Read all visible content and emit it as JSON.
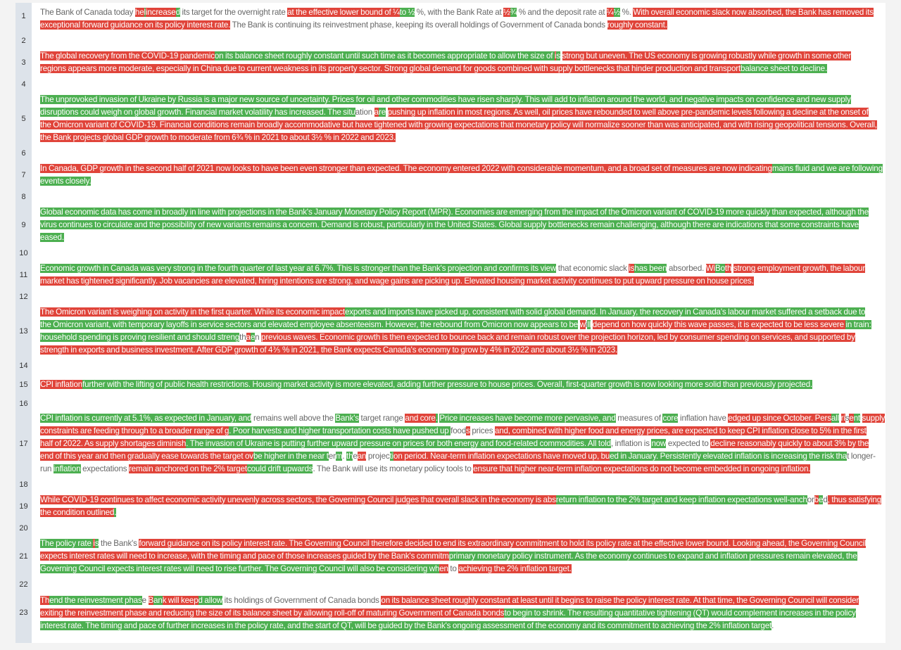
{
  "colors": {
    "deleted": "#e0443a",
    "inserted": "#4caf50",
    "unchanged": "#666666",
    "gutter": "#dde3ea"
  },
  "line_numbers": [
    "1",
    "2",
    "3",
    "4",
    "5",
    "6",
    "7",
    "8",
    "9",
    "10",
    "11",
    "12",
    "13",
    "14",
    "15",
    "16",
    "17",
    "18",
    "19",
    "20",
    "21",
    "22",
    "23"
  ],
  "paragraphs": [
    {
      "line": "1",
      "visual_lines": [
        [
          [
            "e",
            "The Bank of Canada today "
          ],
          [
            "d",
            "he"
          ],
          [
            "i",
            "l"
          ],
          [
            "d",
            "increase"
          ],
          [
            "i",
            "d"
          ],
          [
            "e",
            " its target for the overnight rate "
          ],
          [
            "d",
            "at the effective lower bound of ¼"
          ],
          [
            "i",
            "to ½"
          ],
          [
            "e",
            " %, with the Bank Rate at "
          ],
          [
            "d",
            "½"
          ],
          [
            "i",
            "¾"
          ],
          [
            "e",
            " % and the deposit rate at "
          ],
          [
            "d",
            "¼"
          ],
          [
            "i",
            "½"
          ],
          [
            "e",
            " %. "
          ],
          [
            "d",
            "With overall economic slack now absorbed, the Bank has removed its"
          ]
        ],
        [
          [
            "d",
            "exceptional forward guidance on its policy interest rate."
          ],
          [
            "e",
            " The Bank is continuing its reinvestment phase, keeping its overall holdings of Government of Canada bonds "
          ],
          [
            "d",
            "roughly constant."
          ]
        ]
      ]
    },
    {
      "line": "3",
      "visual_lines": [
        [
          [
            "d",
            "The global recovery from the COVID-19 pandemic"
          ],
          [
            "i",
            "on its balance sheet roughly constant until such time as it becomes appropriate to allow the size of "
          ],
          [
            "d",
            "i"
          ],
          [
            "i",
            "s"
          ],
          [
            "e",
            " "
          ],
          [
            "d",
            "strong but uneven. The US economy is growing robustly while growth in some other"
          ]
        ],
        [
          [
            "d",
            "regions appears more moderate, especially in China due to current weakness in its property sector. Strong global demand for goods combined with supply bottlenecks that hinder production and transport"
          ],
          [
            "i",
            "balance sheet to decline."
          ]
        ]
      ]
    },
    {
      "line": "5",
      "visual_lines": [
        [
          [
            "i",
            "The unprovoked invasion of Ukraine by Russia is a major new source of uncertainty. Prices for oil and other commodities have risen sharply. This will add to inflation around the world, and negative impacts on confidence and new supply"
          ]
        ],
        [
          [
            "i",
            "disruptions could weigh on global growth. Financial market volatility has increased. The situ"
          ],
          [
            "e",
            "ation "
          ],
          [
            "d",
            "a"
          ],
          [
            "i",
            "re"
          ],
          [
            "e",
            " "
          ],
          [
            "d",
            "pushing up inflation in most regions. As well, oil prices have rebounded to well above pre-pandemic levels following a decline at the onset of"
          ]
        ],
        [
          [
            "d",
            "the Omicron variant of COVID-19. Financial conditions remain broadly accommodative but have tightened with growing expectations that monetary policy will normalize sooner than was anticipated, and with rising geopolitical tensions. Overall,"
          ]
        ],
        [
          [
            "d",
            "the Bank projects global GDP growth to moderate from 6¾ % in 2021 to about 3½ % in 2022 and 2023."
          ]
        ]
      ]
    },
    {
      "line": "7",
      "visual_lines": [
        [
          [
            "d",
            "In Canada, GDP growth in the second half of 2021 now looks to have been even stronger than expected. The economy entered 2022 with considerable momentum, and a broad set of measures are now indicating"
          ],
          [
            "i",
            "mains fluid and we are following"
          ]
        ],
        [
          [
            "i",
            "events closely."
          ]
        ]
      ]
    },
    {
      "line": "9",
      "visual_lines": [
        [
          [
            "i",
            "Global economic data has come in broadly in line with projections in the Bank's January Monetary Policy Report (MPR). Economies are emerging from the impact of the Omicron variant of COVID-19 more quickly than expected, although the"
          ]
        ],
        [
          [
            "i",
            "virus continues to circulate and the possibility of new variants remains a concern. Demand is robust, particularly in the United States. Global supply bottlenecks remain challenging, although there are indications that some constraints have"
          ]
        ],
        [
          [
            "i",
            "eased."
          ]
        ]
      ]
    },
    {
      "line": "11",
      "visual_lines": [
        [
          [
            "i",
            "Economic growth in Canada was very strong in the fourth quarter of last year at 6.7%. This is stronger than the Bank's projection and confirms its view"
          ],
          [
            "e",
            " that economic slack "
          ],
          [
            "d",
            "is"
          ],
          [
            "i",
            "has been"
          ],
          [
            "e",
            " absorbed. "
          ],
          [
            "d",
            "Wi"
          ],
          [
            "i",
            "Bo"
          ],
          [
            "d",
            "th"
          ],
          [
            "e",
            " "
          ],
          [
            "d",
            "strong employment growth, the labour"
          ]
        ],
        [
          [
            "d",
            "market has tightened significantly. Job vacancies are elevated, hiring intentions are strong, and wage gains are picking up. Elevated housing market activity continues to put upward pressure on house prices."
          ]
        ]
      ]
    },
    {
      "line": "13",
      "visual_lines": [
        [
          [
            "d",
            "The Omicron variant is weighing on activity in the first quarter. While its economic impact"
          ],
          [
            "i",
            "exports and imports have picked up, consistent with solid global demand. In January, the recovery in Canada's labour market suffered a setback due to"
          ]
        ],
        [
          [
            "i",
            "the Omicron variant, with temporary layoffs in service sectors and elevated employee absenteeism. However, the rebound from Omicron now appears to be"
          ],
          [
            "e",
            " "
          ],
          [
            "d",
            "w"
          ],
          [
            "e",
            "i"
          ],
          [
            "i",
            "ll"
          ],
          [
            "e",
            " "
          ],
          [
            "d",
            "depend on how quickly this wave passes, it is expected to be less severe "
          ],
          [
            "i",
            "in train:"
          ]
        ],
        [
          [
            "i",
            "household spending is proving resilient and should streng"
          ],
          [
            "e",
            "th"
          ],
          [
            "d",
            "a"
          ],
          [
            "i",
            "e"
          ],
          [
            "e",
            "n "
          ],
          [
            "d",
            "previous waves. Economic growth is then expected to bounce back and remain robust over the projection horizon, led by consumer spending on services, and supported by"
          ]
        ],
        [
          [
            "d",
            "strength in exports and business investment. After GDP growth of 4⅗ % in 2021, the Bank expects Canada's economy to grow by 4% in 2022 and about 3½ % in 2023."
          ]
        ]
      ]
    },
    {
      "line": "15",
      "visual_lines": [
        [
          [
            "d",
            "CPI inflation"
          ],
          [
            "i",
            "further with the lifting of public health restrictions. Housing market activity is more elevated, adding further pressure to house prices. Overall, first-quarter growth is now looking more solid than previously projected."
          ]
        ]
      ]
    },
    {
      "line": "17",
      "visual_lines": [
        [
          [
            "i",
            "CPI inflation is currently at 5.1%, as expected in January, and"
          ],
          [
            "e",
            " remains well above the "
          ],
          [
            "i",
            "Bank's"
          ],
          [
            "e",
            " target range "
          ],
          [
            "d",
            "and core"
          ],
          [
            "i",
            "."
          ],
          [
            "e",
            " "
          ],
          [
            "i",
            "Price increases have become more pervasive, and"
          ],
          [
            "e",
            " measures of "
          ],
          [
            "i",
            "core"
          ],
          [
            "e",
            " inflation have "
          ],
          [
            "d",
            "edged up since October. Pers"
          ],
          [
            "i",
            "all"
          ],
          [
            "e",
            " "
          ],
          [
            "d",
            "ri"
          ],
          [
            "e",
            "s"
          ],
          [
            "d",
            "e"
          ],
          [
            "i",
            "nt"
          ],
          [
            "e",
            " "
          ],
          [
            "d",
            "supply"
          ]
        ],
        [
          [
            "d",
            "constraints are feeding through to a broader range of g"
          ],
          [
            "i",
            ". Poor harvests and higher transportation costs have pushed up "
          ],
          [
            "e",
            "food"
          ],
          [
            "d",
            "s"
          ],
          [
            "e",
            " prices "
          ],
          [
            "d",
            "and, combined with higher food and energy prices, are expected to keep CPI inflation close to 5% in the first"
          ]
        ],
        [
          [
            "d",
            "half of 2022. As supply shortages diminish"
          ],
          [
            "i",
            ". The invasion of Ukraine is putting further upward pressure on prices for both energy and food-related commodities. All told"
          ],
          [
            "e",
            ", inflation is "
          ],
          [
            "i",
            "now"
          ],
          [
            "e",
            " expected to "
          ],
          [
            "d",
            "decline reasonably quickly to about 3% by the"
          ]
        ],
        [
          [
            "d",
            "end of this year and then gradually ease towards the target ov"
          ],
          [
            "i",
            "be higher in the near t"
          ],
          [
            "e",
            "er"
          ],
          [
            "i",
            "m"
          ],
          [
            "e",
            ". "
          ],
          [
            "i",
            "th"
          ],
          [
            "e",
            "e"
          ],
          [
            "d",
            "an"
          ],
          [
            "e",
            " projec"
          ],
          [
            "i",
            "ti"
          ],
          [
            "d",
            "on period. Near-term inflation expectations have moved up, bu"
          ],
          [
            "i",
            "ed in January. Persistently elevated inflation is increasing the risk tha"
          ],
          [
            "e",
            "t longer-"
          ]
        ],
        [
          [
            "e",
            "run "
          ],
          [
            "i",
            "inflation"
          ],
          [
            "e",
            " expectations "
          ],
          [
            "d",
            "remain anchored on the 2% target"
          ],
          [
            "i",
            "could drift upwards"
          ],
          [
            "e",
            ". The Bank will use its monetary policy tools to "
          ],
          [
            "d",
            "ensure that higher near-term inflation expectations do not become embedded in ongoing inflation."
          ]
        ]
      ]
    },
    {
      "line": "19",
      "visual_lines": [
        [
          [
            "d",
            "While COVID-19 continues to affect economic activity unevenly across sectors, the Governing Council judges that overall slack in the economy is abs"
          ],
          [
            "i",
            "return inflation to the 2% target and keep inflation expectations well-anch"
          ],
          [
            "e",
            "or"
          ],
          [
            "d",
            "b"
          ],
          [
            "i",
            "e"
          ],
          [
            "e",
            "d"
          ],
          [
            "d",
            ", thus satisfying"
          ]
        ],
        [
          [
            "d",
            "the condition outlined"
          ],
          [
            "i",
            "."
          ]
        ]
      ]
    },
    {
      "line": "21",
      "visual_lines": [
        [
          [
            "i",
            "The policy rate "
          ],
          [
            "d",
            "i"
          ],
          [
            "i",
            "s"
          ],
          [
            "e",
            " the Bank's "
          ],
          [
            "d",
            "forward guidance on its policy interest rate. The Governing Council therefore decided to end its extraordinary commitment to hold its policy rate at the effective lower bound. Looking ahead, the Governing Council"
          ]
        ],
        [
          [
            "d",
            "expects interest rates will need to increase, with the timing and pace of those increases guided by the Bank's commitm"
          ],
          [
            "i",
            "primary monetary policy instrument. As the economy continues to expand and inflation pressures remain elevated, the"
          ]
        ],
        [
          [
            "i",
            "Governing Council expects interest rates will need to rise further. The Governing Council will also be considering wh"
          ],
          [
            "d",
            "en"
          ],
          [
            "e",
            " to "
          ],
          [
            "d",
            "achieving the 2% inflation target."
          ]
        ]
      ]
    },
    {
      "line": "23",
      "visual_lines": [
        [
          [
            "d",
            "Th"
          ],
          [
            "i",
            "end the reinvestment phas"
          ],
          [
            "e",
            "e "
          ],
          [
            "d",
            "B"
          ],
          [
            "i",
            "an"
          ],
          [
            "d",
            "k will keep"
          ],
          [
            "i",
            "d allow"
          ],
          [
            "e",
            " its holdings of Government of Canada bonds "
          ],
          [
            "d",
            "on its balance sheet roughly constant at least until it begins to raise the policy interest rate. At that time, the Governing Council will consider"
          ]
        ],
        [
          [
            "d",
            "exiting the reinvestment phase and reducing the size of its balance sheet by allowing roll-off of maturing Government of Canada bonds"
          ],
          [
            "i",
            "to begin to shrink. The resulting quantitative tightening (QT) would complement increases in the policy"
          ]
        ],
        [
          [
            "i",
            "interest rate. The timing and pace of further increases in the policy rate, and the start of QT, will be guided by the Bank's ongoing assessment of the economy and its commitment to achieving the 2% inflation target"
          ],
          [
            "e",
            "."
          ]
        ]
      ]
    }
  ]
}
